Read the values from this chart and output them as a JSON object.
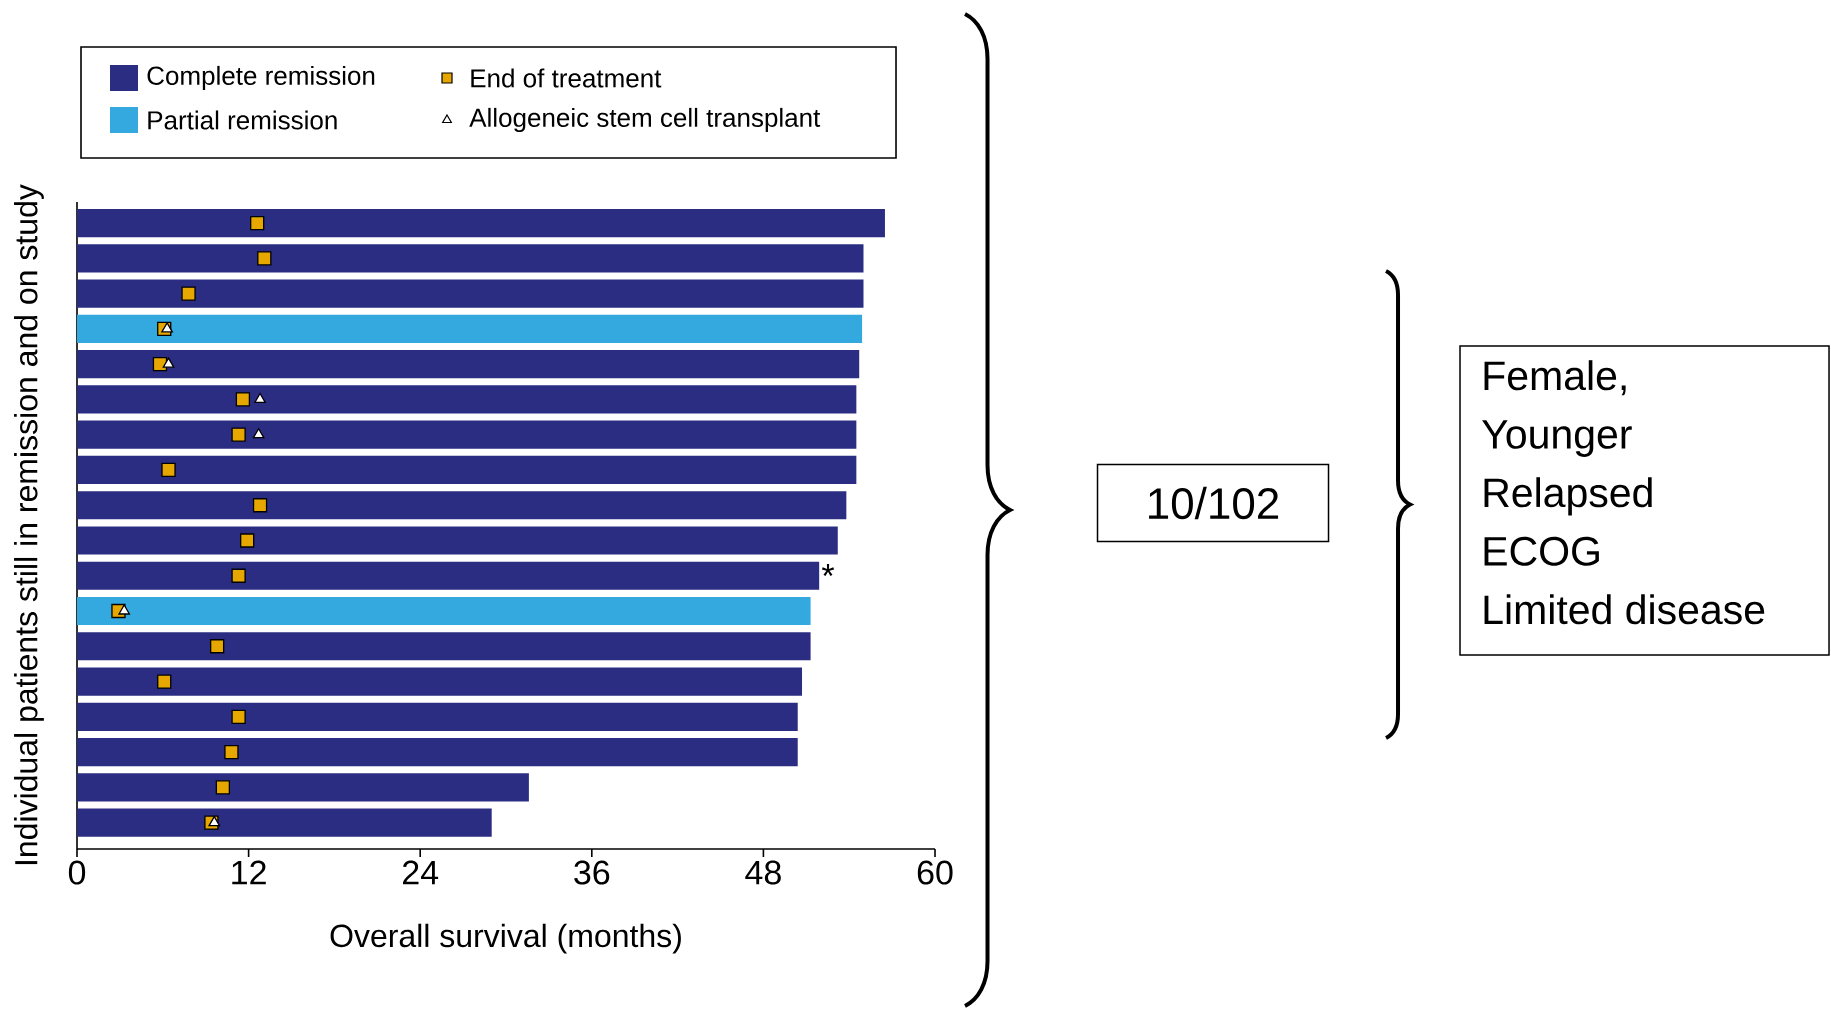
{
  "chart_data": {
    "type": "bar",
    "orientation": "horizontal",
    "xlabel": "Overall survival (months)",
    "ylabel": "Individual patients still in remission and on study",
    "categories": [
      null,
      null,
      null,
      null,
      null,
      null,
      null,
      null,
      null,
      null,
      null,
      null,
      null,
      null,
      null,
      null,
      null,
      null
    ],
    "series": [
      {
        "name": "Complete remission",
        "color": "#2b2d82",
        "values": [
          56.5,
          55.0,
          55.0,
          null,
          54.7,
          54.5,
          54.5,
          54.5,
          53.8,
          53.2,
          51.9,
          null,
          51.3,
          50.7,
          50.4,
          50.4,
          31.6,
          29.0
        ]
      },
      {
        "name": "Partial remission",
        "color": "#33a9e0",
        "values": [
          null,
          null,
          null,
          54.9,
          null,
          null,
          null,
          null,
          null,
          null,
          null,
          51.3,
          null,
          null,
          null,
          null,
          null,
          null
        ]
      },
      {
        "name": "End of treatment",
        "type": "scatter",
        "marker": "square",
        "color": "#e6a800",
        "values": [
          12.6,
          13.1,
          7.8,
          6.1,
          5.8,
          11.6,
          11.3,
          6.4,
          12.8,
          11.9,
          11.3,
          2.9,
          9.8,
          6.1,
          11.3,
          10.8,
          10.2,
          9.4
        ]
      },
      {
        "name": "Allogeneic stem cell transplant",
        "type": "scatter",
        "marker": "triangle",
        "color": "#ffffff",
        "values": [
          null,
          null,
          null,
          6.3,
          6.4,
          12.8,
          12.7,
          null,
          null,
          null,
          null,
          3.3,
          null,
          null,
          null,
          null,
          null,
          9.6
        ]
      }
    ],
    "xlim": [
      0,
      60
    ],
    "xticks": [
      0,
      12,
      24,
      36,
      48,
      60
    ],
    "legend": "top",
    "annotations": [
      {
        "text": "*",
        "x": 51.9
      },
      "10/102",
      "Female,",
      "Younger",
      "Relapsed",
      "ECOG",
      "Limited disease"
    ]
  }
}
